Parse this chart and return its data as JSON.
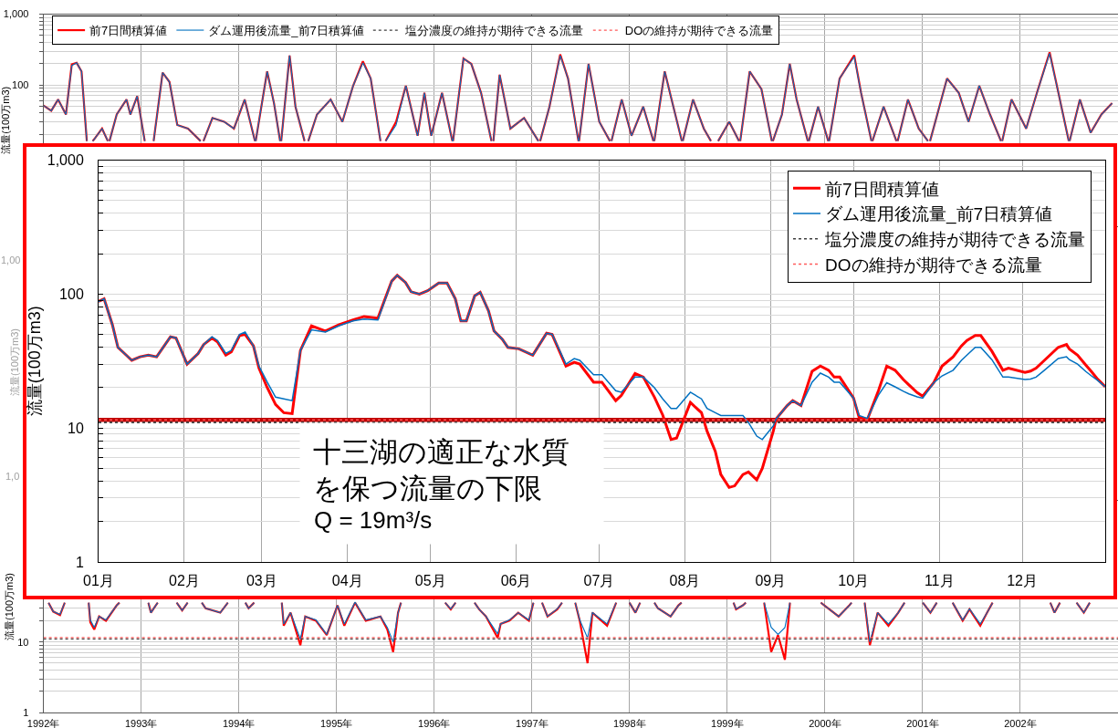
{
  "chart_data": [
    {
      "type": "line",
      "x": [
        1992.0,
        1992.08,
        1992.15,
        1992.23,
        1992.29,
        1992.34,
        1992.39,
        1992.444,
        1992.45,
        1992.504,
        1992.52,
        1992.6,
        1992.659,
        1992.67,
        1992.676,
        1992.75,
        1992.85,
        1992.89,
        1992.96,
        1993.037,
        1993.04,
        1993.12,
        1993.128,
        1993.22,
        1993.29,
        1993.37,
        1993.48,
        1993.609,
        1993.63,
        1993.638,
        1993.73,
        1993.85,
        1993.95,
        1994.06,
        1994.165,
        1994.17,
        1994.173,
        1994.29,
        1994.36,
        1994.423,
        1994.43,
        1994.434,
        1994.52,
        1994.58,
        1994.673,
        1994.69,
        1994.711,
        1994.8,
        1994.94,
        1995.06,
        1995.17,
        1995.27,
        1995.35,
        1995.45,
        1995.46,
        1995.503,
        1995.61,
        1995.71,
        1995.83,
        1995.9,
        1995.97,
        1996.08,
        1996.186,
        1996.19,
        1996.193,
        1996.3,
        1996.38,
        1996.48,
        1996.586,
        1996.6,
        1996.606,
        1996.67,
        1996.78,
        1996.92,
        1997.067,
        1997.08,
        1997.085,
        1997.18,
        1997.29,
        1997.37,
        1997.477,
        1997.48,
        1997.483,
        1997.58,
        1997.69,
        1997.799,
        1997.81,
        1997.815,
        1997.92,
        1998.02,
        1998.14,
        1998.244,
        1998.25,
        1998.253,
        1998.36,
        1998.43,
        1998.535,
        1998.54,
        1998.545,
        1998.65,
        1998.76,
        1998.833,
        1998.87,
        1998.907,
        1999.02,
        1999.12,
        1999.13,
        1999.133,
        1999.23,
        1999.35,
        1999.456,
        1999.46,
        1999.467,
        1999.56,
        1999.64,
        1999.71,
        1999.825,
        1999.83,
        1999.835,
        1999.93,
        2000.034,
        2000.04,
        2000.043,
        2000.15,
        2000.3,
        2000.37,
        2000.476,
        2000.48,
        2000.486,
        2000.6,
        2000.732,
        2000.74,
        2000.745,
        2000.85,
        2000.96,
        2001.055,
        2001.07,
        2001.076,
        2001.25,
        2001.37,
        2001.47,
        2001.58,
        2001.69,
        2001.802,
        2001.81,
        2001.815,
        2001.91,
        2002.06,
        2002.17,
        2002.3,
        2002.39,
        2002.496,
        2002.5,
        2002.505,
        2002.61,
        2002.72,
        2002.83,
        2002.94
      ],
      "series": [
        {
          "name": "前7日間積算値",
          "color": "#ff0000",
          "values": [
            51,
            43,
            62,
            38,
            195,
            205,
            155,
            16,
            null,
            16,
            17,
            24,
            16,
            null,
            16,
            38,
            62,
            38,
            69,
            16,
            null,
            null,
            16,
            149,
            110,
            27,
            24,
            16,
            null,
            16,
            34,
            30,
            24,
            62,
            16,
            null,
            16,
            155,
            55,
            16,
            null,
            16,
            260,
            49,
            16,
            null,
            16,
            38,
            62,
            30,
            97,
            215,
            123,
            16,
            null,
            16,
            30,
            97,
            19,
            77,
            19,
            77,
            16,
            null,
            16,
            236,
            198,
            77,
            16,
            null,
            16,
            139,
            24,
            34,
            16,
            null,
            16,
            49,
            270,
            123,
            16,
            null,
            16,
            198,
            30,
            16,
            null,
            16,
            62,
            19,
            49,
            16,
            null,
            16,
            155,
            62,
            16,
            null,
            16,
            62,
            24,
            16,
            null,
            16,
            30,
            16,
            null,
            16,
            155,
            87,
            16,
            null,
            16,
            38,
            198,
            62,
            16,
            null,
            16,
            49,
            16,
            null,
            16,
            123,
            262,
            77,
            16,
            null,
            16,
            49,
            16,
            null,
            16,
            62,
            24,
            16,
            null,
            16,
            123,
            77,
            30,
            97,
            38,
            16,
            null,
            16,
            62,
            24,
            77,
            290,
            77,
            16,
            null,
            16,
            62,
            21,
            38,
            55
          ]
        },
        {
          "name": "ダム運用後流量_前7日積算値",
          "color": "#0070c0",
          "values": [
            51,
            43,
            62,
            38,
            187,
            205,
            155,
            16,
            null,
            16,
            17,
            24,
            16,
            null,
            16,
            38,
            62,
            38,
            69,
            16,
            null,
            null,
            16,
            149,
            110,
            27,
            24,
            16,
            null,
            16,
            34,
            30,
            24,
            62,
            16,
            null,
            16,
            155,
            55,
            16,
            null,
            16,
            260,
            49,
            16,
            null,
            16,
            38,
            62,
            30,
            97,
            205,
            123,
            16,
            null,
            16,
            27,
            97,
            19,
            77,
            19,
            77,
            16,
            null,
            16,
            236,
            198,
            77,
            16,
            null,
            16,
            139,
            24,
            34,
            16,
            null,
            16,
            49,
            260,
            123,
            16,
            null,
            16,
            198,
            30,
            16,
            null,
            16,
            62,
            19,
            49,
            16,
            null,
            16,
            155,
            62,
            16,
            null,
            16,
            62,
            24,
            16,
            null,
            16,
            30,
            16,
            null,
            16,
            155,
            87,
            16,
            null,
            16,
            38,
            198,
            62,
            16,
            null,
            16,
            49,
            16,
            null,
            16,
            123,
            250,
            77,
            16,
            null,
            16,
            49,
            16,
            null,
            16,
            62,
            24,
            16,
            null,
            16,
            123,
            77,
            30,
            97,
            38,
            16,
            null,
            16,
            62,
            24,
            77,
            279,
            77,
            16,
            null,
            16,
            62,
            21,
            38,
            55
          ]
        },
        {
          "name": "塩分濃度の維持が期待できる流量",
          "color": "#404040",
          "line_style": "dotted",
          "values": [
            null,
            null,
            null,
            null,
            null,
            null,
            null,
            null,
            null,
            null,
            null,
            null,
            null,
            null,
            null,
            null,
            null,
            null,
            null,
            null,
            null,
            null,
            null,
            null,
            null,
            null,
            null,
            null,
            null,
            null,
            null,
            null,
            null,
            null,
            null,
            null,
            null,
            null,
            null,
            null,
            null,
            null,
            null,
            null,
            null,
            null,
            null,
            null,
            null,
            null,
            null,
            null,
            null,
            null,
            null,
            null,
            null,
            null,
            null,
            null,
            null,
            null,
            null,
            null,
            null,
            null,
            null,
            null,
            null,
            null,
            null,
            null,
            null,
            null,
            null,
            null,
            null,
            null,
            null,
            null,
            null,
            null,
            null,
            null,
            null,
            null,
            null,
            null,
            null,
            null,
            null,
            null,
            null,
            null,
            null,
            null,
            null,
            null,
            null,
            null,
            null,
            null,
            null,
            null,
            null,
            null,
            null,
            null,
            null,
            null,
            null,
            null,
            null,
            null,
            null,
            null,
            null,
            null,
            null,
            null,
            null,
            null,
            null,
            null,
            null,
            null,
            null,
            null,
            null,
            null,
            null,
            null,
            null,
            null,
            null,
            null,
            null,
            null,
            null,
            null,
            null,
            null,
            null,
            null,
            null,
            null,
            null,
            null,
            null,
            null,
            null,
            null,
            null,
            null,
            null,
            null,
            null,
            null
          ]
        },
        {
          "name": "DOの維持が期待できる流量",
          "color": "#ff5b5b",
          "line_style": "dotted",
          "values": [
            null,
            null,
            null,
            null,
            null,
            null,
            null,
            null,
            null,
            null,
            null,
            null,
            null,
            null,
            null,
            null,
            null,
            null,
            null,
            null,
            null,
            null,
            null,
            null,
            null,
            null,
            null,
            null,
            null,
            null,
            null,
            null,
            null,
            null,
            null,
            null,
            null,
            null,
            null,
            null,
            null,
            null,
            null,
            null,
            null,
            null,
            null,
            null,
            null,
            null,
            null,
            null,
            null,
            null,
            null,
            null,
            null,
            null,
            null,
            null,
            null,
            null,
            null,
            null,
            null,
            null,
            null,
            null,
            null,
            null,
            null,
            null,
            null,
            null,
            null,
            null,
            null,
            null,
            null,
            null,
            null,
            null,
            null,
            null,
            null,
            null,
            null,
            null,
            null,
            null,
            null,
            null,
            null,
            null,
            null,
            null,
            null,
            null,
            null,
            null,
            null,
            null,
            null,
            null,
            null,
            null,
            null,
            null,
            null,
            null,
            null,
            null,
            null,
            null,
            null,
            null,
            null,
            null,
            null,
            null,
            null,
            null,
            null,
            null,
            null,
            null,
            null,
            null,
            null,
            null,
            null,
            null,
            null,
            null,
            null,
            null,
            null,
            null,
            null,
            null,
            null,
            null,
            null,
            null,
            null,
            null,
            null,
            null,
            null,
            null,
            null,
            null,
            null,
            null,
            null,
            null,
            null,
            null
          ]
        }
      ],
      "ylabel": "流量(100万m3)",
      "log": true,
      "grid": true,
      "legend": "top left",
      "tick_labels": "y",
      "ylim": [
        1,
        1000
      ],
      "yticks": [
        {
          "value": 20,
          "label": null
        },
        {
          "value": 30,
          "label": null
        },
        {
          "value": 40,
          "label": null
        },
        {
          "value": 50,
          "label": null
        },
        {
          "value": 60,
          "label": null
        },
        {
          "value": 70,
          "label": null
        },
        {
          "value": 80,
          "label": null
        },
        {
          "value": 90,
          "label": null
        },
        100,
        {
          "value": 200,
          "label": null
        },
        {
          "value": 300,
          "label": null
        },
        {
          "value": 400,
          "label": null
        },
        {
          "value": 500,
          "label": null
        },
        {
          "value": 600,
          "label": null
        },
        {
          "value": 700,
          "label": null
        },
        {
          "value": 800,
          "label": null
        },
        {
          "value": 900,
          "label": null
        },
        {
          "value": 1000,
          "label": "1,000"
        }
      ],
      "xlim": [
        1992,
        2003
      ],
      "xticks": [
        {
          "value": 1992,
          "label": null
        },
        {
          "value": 1993,
          "label": null
        },
        {
          "value": 1994,
          "label": null
        },
        {
          "value": 1995,
          "label": null
        },
        {
          "value": 1996,
          "label": null
        },
        {
          "value": 1997,
          "label": null
        },
        {
          "value": 1998,
          "label": null
        },
        {
          "value": 1999,
          "label": null
        },
        {
          "value": 2000,
          "label": null
        },
        {
          "value": 2001,
          "label": null
        },
        {
          "value": 2002,
          "label": null
        }
      ]
    },
    {
      "type": "other",
      "ylabel": "流量(100万m3)",
      "annotations": [
        "1,00",
        "1,0"
      ]
    },
    {
      "type": "line",
      "x": [
        1992.052,
        1992.1,
        1992.17,
        1992.218,
        1992.26,
        1992.45,
        1992.463,
        1992.48,
        1992.52,
        1992.57,
        1992.64,
        1992.75,
        1992.778,
        1992.86,
        1993.04,
        1993.074,
        1993.1,
        1993.15,
        1993.17,
        1993.27,
        1993.364,
        1993.42,
        1993.476,
        1993.55,
        1993.621,
        1993.66,
        1993.81,
        1993.888,
        1993.99,
        1994.067,
        1994.1,
        1994.157,
        1994.29,
        1994.43,
        1994.44,
        1994.46,
        1994.53,
        1994.63,
        1994.68,
        1994.79,
        1994.9,
        1995.01,
        1995.08,
        1995.19,
        1995.3,
        1995.45,
        1995.52,
        1995.58,
        1995.63,
        1995.66,
        1995.7,
        1995.99,
        1996.112,
        1996.17,
        1996.219,
        1996.32,
        1996.413,
        1996.46,
        1996.53,
        1996.65,
        1996.68,
        1996.77,
        1996.86,
        1996.97,
        1997.016,
        1997.05,
        1997.104,
        1997.16,
        1997.26,
        1997.309,
        1997.41,
        1997.444,
        1997.49,
        1997.57,
        1997.62,
        1997.77,
        1997.863,
        1997.92,
        1997.999,
        1998.06,
        1998.108,
        1998.17,
        1998.254,
        1998.29,
        1998.42,
        1998.5,
        1998.532,
        1998.69,
        1999.01,
        1999.064,
        1999.09,
        1999.16,
        1999.19,
        1999.34,
        1999.378,
        1999.45,
        1999.52,
        1999.59,
        1999.642,
        1999.65,
        1999.78,
        1999.958,
        1999.97,
        2000.14,
        2000.25,
        2000.273,
        2000.39,
        2000.407,
        2000.46,
        2000.54,
        2000.65,
        2000.75,
        2000.815,
        2000.9,
        2001.002,
        2001.08,
        2001.145,
        2001.23,
        2001.307,
        2001.41,
        2001.48,
        2001.59,
        2001.66,
        2001.716,
        2001.79,
        2002.02,
        2002.25,
        2002.307,
        2002.35,
        2002.406,
        2002.48,
        2002.576,
        2002.65,
        2002.711
      ],
      "series": [
        {
          "color": "#ff0000",
          "values": [
            36,
            27,
            24,
            36,
            null,
            null,
            36,
            19,
            15,
            23,
            20,
            33,
            36,
            null,
            null,
            36,
            26,
            33,
            36,
            null,
            36,
            28,
            36,
            null,
            36,
            30,
            26,
            36,
            null,
            36,
            30,
            36,
            null,
            null,
            36,
            17,
            26,
            9,
            23,
            20,
            12.5,
            33,
            17,
            36,
            20,
            23,
            15,
            7.2,
            26,
            36,
            null,
            null,
            36,
            29,
            36,
            null,
            36,
            29,
            23,
            11.4,
            18,
            20,
            26,
            20,
            36,
            null,
            36,
            23,
            29,
            36,
            null,
            36,
            20,
            5,
            26,
            17,
            36,
            null,
            36,
            26,
            36,
            null,
            36,
            30,
            23,
            33,
            36,
            null,
            null,
            36,
            29,
            33,
            36,
            null,
            36,
            7.2,
            12.5,
            5.6,
            36,
            null,
            null,
            36,
            35,
            23,
            33,
            36,
            null,
            36,
            9,
            26,
            17,
            26,
            36,
            null,
            36,
            26,
            36,
            null,
            36,
            20,
            29,
            17,
            26,
            36,
            null,
            null,
            null,
            36,
            26,
            36,
            null,
            36,
            26,
            36
          ]
        },
        {
          "color": "#0070c0",
          "values": [
            36,
            27,
            24.6,
            36,
            null,
            null,
            36,
            20.5,
            16.1,
            23,
            20.5,
            33,
            36,
            null,
            null,
            36,
            26,
            33,
            36,
            null,
            36,
            28,
            36,
            null,
            36,
            30,
            26,
            36,
            null,
            36,
            30,
            36,
            null,
            null,
            36,
            18,
            26,
            11,
            23,
            20.5,
            12.8,
            33,
            18,
            36.7,
            20.5,
            23,
            16.1,
            10,
            26,
            36,
            null,
            null,
            36,
            29.4,
            36,
            null,
            36,
            29,
            23,
            13,
            18,
            20.5,
            26,
            20.5,
            36,
            null,
            36,
            23,
            29.4,
            36,
            null,
            36,
            20.5,
            11.4,
            26,
            18,
            36,
            null,
            36,
            26,
            36,
            null,
            36,
            30,
            23,
            33,
            36,
            null,
            null,
            36,
            29.4,
            33,
            36,
            null,
            36,
            16.1,
            12.8,
            16,
            36,
            null,
            null,
            36,
            35,
            23,
            33,
            36,
            null,
            36,
            10,
            26,
            18,
            26,
            36,
            null,
            36,
            26,
            36,
            null,
            36,
            20.5,
            29.4,
            18,
            26,
            36,
            null,
            null,
            null,
            36,
            26,
            36,
            null,
            36,
            26,
            36
          ]
        },
        {
          "color": "#404040",
          "line_style": "dotted",
          "x": [
            1992,
            2003
          ],
          "values": [
            11,
            11
          ]
        },
        {
          "color": "#ff5b5b",
          "line_style": "dotted",
          "x": [
            1992,
            2003
          ],
          "values": [
            11.5,
            11.5
          ]
        }
      ],
      "ylabel": "流量(100万m3)",
      "log": true,
      "grid": true,
      "ylim": [
        1,
        1000
      ],
      "yticks": [
        1,
        {
          "value": 2,
          "label": null
        },
        {
          "value": 3,
          "label": null
        },
        {
          "value": 4,
          "label": null
        },
        {
          "value": 5,
          "label": null
        },
        {
          "value": 6,
          "label": null
        },
        {
          "value": 7,
          "label": null
        },
        {
          "value": 8,
          "label": null
        },
        {
          "value": 9,
          "label": null
        },
        10,
        {
          "value": 20,
          "label": null
        },
        {
          "value": 30,
          "label": null
        }
      ],
      "xlim": [
        1992,
        2003
      ],
      "xticks": [
        {
          "value": 1992,
          "label": "1992年"
        },
        {
          "value": 1993,
          "label": "1993年"
        },
        {
          "value": 1994,
          "label": "1994年"
        },
        {
          "value": 1995,
          "label": "1995年"
        },
        {
          "value": 1996,
          "label": "1996年"
        },
        {
          "value": 1997,
          "label": "1997年"
        },
        {
          "value": 1998,
          "label": "1998年"
        },
        {
          "value": 1999,
          "label": "1999年"
        },
        {
          "value": 2000,
          "label": "2000年"
        },
        {
          "value": 2001,
          "label": "2001年"
        },
        {
          "value": 2002,
          "label": "2002年"
        }
      ]
    },
    {
      "type": "line",
      "x": [
        "--01-01",
        "--01-03",
        "--01-06",
        "--01-08",
        "--01-11",
        "--01-13",
        "--01-16",
        "--01-19",
        "--01-22",
        "--01-27",
        "--01-29",
        "--02-02",
        "--02-06",
        "--02-08",
        "--02-11",
        "--02-13",
        "--02-16",
        "--02-18",
        "--02-21",
        "--02-23",
        "--02-26",
        "--02-28",
        "--03-03",
        "--03-06",
        "--03-09",
        "--03-12",
        "--03-15",
        "--03-19",
        "--03-24",
        "--03-29",
        "--04-03",
        "--04-07",
        "--04-12",
        "--04-17",
        "--04-19",
        "--04-22",
        "--04-24",
        "--04-27",
        "--04-30",
        "--05-04",
        "--05-07",
        "--05-10",
        "--05-12",
        "--05-14",
        "--05-17",
        "--05-19",
        "--05-22",
        "--05-24",
        "--05-27",
        "--05-29",
        "--06-02",
        "--06-07",
        "--06-12",
        "--06-14",
        "--06-19",
        "--06-22",
        "--06-24",
        "--06-29",
        "--07-02",
        "--07-07",
        "--07-09",
        "--07-14",
        "--07-17",
        "--07-21",
        "--07-24",
        "--07-27",
        "--07-29",
        "--08-03",
        "--08-07",
        "--08-09",
        "--08-12",
        "--08-14",
        "--08-17",
        "--08-19",
        "--08-22",
        "--08-24",
        "--08-27",
        "--08-29",
        "--09-02",
        "--09-03",
        "--09-07",
        "--09-09",
        "--09-12",
        "--09-16",
        "--09-19",
        "--09-22",
        "--09-24",
        "--09-26",
        "--10-01",
        "--10-03",
        "--10-06",
        "--10-10",
        "--10-13",
        "--10-16",
        "--10-19",
        "--10-21",
        "--10-24",
        "--10-26",
        "--10-30",
        "--11-02",
        "--11-06",
        "--11-09",
        "--11-11",
        "--11-14",
        "--11-16",
        "--11-20",
        "--11-24",
        "--11-26",
        "--12-02",
        "--12-04",
        "--12-06",
        "--12-09",
        "--12-14",
        "--12-17",
        "--12-18",
        "--12-21",
        "--12-24",
        "--12-26",
        "--12-28",
        "--12-31"
      ],
      "series": [
        {
          "name": "前7日間積算値",
          "color": "#ff0000",
          "values": [
            88,
            92,
            59,
            40,
            35,
            32,
            34,
            35,
            34,
            48,
            47,
            30,
            36,
            42,
            47,
            44,
            35,
            37,
            49,
            50,
            41,
            28,
            20,
            15,
            13,
            12.8,
            38,
            58,
            53,
            59,
            64,
            68,
            66,
            125,
            138,
            122,
            104,
            100,
            106,
            121,
            121,
            92,
            63,
            63,
            97,
            103,
            75,
            53,
            46,
            40,
            39,
            35,
            51,
            50,
            29,
            31,
            30,
            22,
            22,
            16,
            17.5,
            25.5,
            24,
            17,
            12.5,
            8.2,
            8.4,
            15.5,
            13,
            9.5,
            6.7,
            4.5,
            3.6,
            3.7,
            4.5,
            4.7,
            4.1,
            5,
            9.5,
            11.7,
            14.7,
            16,
            14.7,
            26.5,
            29,
            27,
            24,
            24,
            16.7,
            12,
            11.6,
            19,
            29,
            27,
            23,
            21,
            18.4,
            17.3,
            21.8,
            29,
            34,
            41,
            45,
            49,
            49,
            37.5,
            27,
            28,
            26,
            26.6,
            28,
            32,
            40,
            42,
            39,
            35,
            29.5,
            26.4,
            23.5,
            20.3
          ]
        },
        {
          "name": "ダム運用後流量_前7日積算値",
          "color": "#0070c0",
          "values": [
            88,
            92,
            59,
            40,
            35,
            32,
            34,
            35,
            34,
            48,
            47,
            30,
            36,
            42,
            48,
            45,
            36,
            38,
            50,
            52,
            41,
            29,
            22,
            17,
            16.5,
            16,
            38,
            54,
            52,
            58,
            63,
            65,
            64,
            125,
            138,
            122,
            104,
            100,
            106,
            121,
            121,
            92,
            63,
            63,
            97,
            103,
            75,
            53,
            46,
            40,
            39,
            35,
            51,
            50,
            30,
            33,
            32,
            25,
            25,
            19,
            18.5,
            24,
            24,
            20,
            16.5,
            14,
            14,
            18.5,
            16.5,
            14,
            13,
            12.4,
            12.4,
            12.4,
            12.4,
            11,
            8.7,
            8.2,
            10.4,
            11.7,
            14.7,
            16,
            14.7,
            22,
            25.7,
            24,
            22,
            22,
            16.7,
            12.4,
            11.8,
            17.6,
            21.8,
            20.3,
            18.8,
            18,
            17.1,
            16.7,
            21.8,
            24.5,
            27,
            32,
            35,
            40,
            40,
            32.4,
            24,
            24,
            23,
            23.2,
            24,
            27,
            33,
            34,
            32.4,
            30,
            26.4,
            24.5,
            22.9,
            20.3
          ]
        },
        {
          "name": "塩分濃度の維持が期待できる流量",
          "color": "#404040",
          "line_style": "dotted",
          "x": [
            "--01-01",
            "--12-31"
          ],
          "values": [
            11,
            11
          ]
        },
        {
          "name": "DOの維持が期待できる流量",
          "color": "#ff5b5b",
          "line_style": "dotted",
          "x": [
            "--01-01",
            "--12-31"
          ],
          "values": [
            11.5,
            11.5
          ]
        }
      ],
      "ylabel": "流量(100万m3)",
      "log": true,
      "grid": true,
      "legend": "top right",
      "ylim": [
        1,
        1000
      ],
      "yticks": [
        1,
        {
          "value": 2,
          "label": null
        },
        {
          "value": 3,
          "label": null
        },
        {
          "value": 4,
          "label": null
        },
        {
          "value": 5,
          "label": null
        },
        {
          "value": 6,
          "label": null
        },
        {
          "value": 7,
          "label": null
        },
        {
          "value": 8,
          "label": null
        },
        {
          "value": 9,
          "label": null
        },
        10,
        {
          "value": 20,
          "label": null
        },
        {
          "value": 30,
          "label": null
        },
        {
          "value": 40,
          "label": null
        },
        {
          "value": 50,
          "label": null
        },
        {
          "value": 60,
          "label": null
        },
        {
          "value": 70,
          "label": null
        },
        {
          "value": 80,
          "label": null
        },
        {
          "value": 90,
          "label": null
        },
        100,
        {
          "value": 200,
          "label": null
        },
        {
          "value": 300,
          "label": null
        },
        {
          "value": 400,
          "label": null
        },
        {
          "value": 500,
          "label": null
        },
        {
          "value": 600,
          "label": null
        },
        {
          "value": 700,
          "label": null
        },
        {
          "value": 800,
          "label": null
        },
        {
          "value": 900,
          "label": null
        },
        {
          "value": 1000,
          "label": "1,000"
        }
      ],
      "xlim": [
        "--01-01",
        "--12-31"
      ],
      "xticks": [
        {
          "value": "--01-01",
          "label": "01月"
        },
        {
          "value": "--02-01",
          "label": "02月"
        },
        {
          "value": "--03-01",
          "label": "03月"
        },
        {
          "value": "--04-01",
          "label": "04月"
        },
        {
          "value": "--05-01",
          "label": "05月"
        },
        {
          "value": "--06-01",
          "label": "06月"
        },
        {
          "value": "--07-01",
          "label": "07月"
        },
        {
          "value": "--08-01",
          "label": "08月"
        },
        {
          "value": "--09-01",
          "label": "09月"
        },
        {
          "value": "--10-01",
          "label": "10月"
        },
        {
          "value": "--11-01",
          "label": "11月"
        },
        {
          "value": "--12-01",
          "label": "12月"
        }
      ],
      "ref_lines": [
        {
          "axis": "y",
          "value": 11.5,
          "label": "十三湖の適正な水質を保つ流量の下限",
          "color": "#c00000"
        }
      ],
      "annotations": [
        "Q = 19m³/s"
      ]
    }
  ]
}
